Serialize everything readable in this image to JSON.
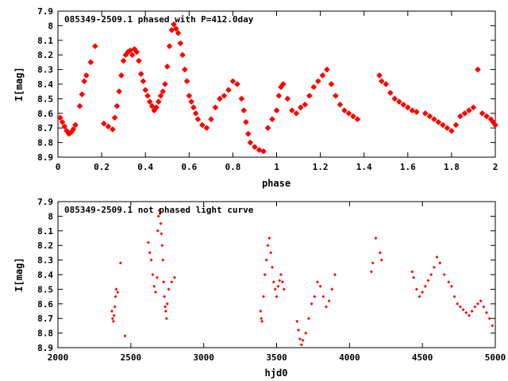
{
  "colors": {
    "points": "#ff0000",
    "axes": "#000000",
    "background": "#ffffff"
  },
  "chart_data": [
    {
      "type": "scatter",
      "title": "085349-2509.1 phased with P=412.0day",
      "xlabel": "phase",
      "ylabel": "I[mag]",
      "xlim": [
        0,
        2
      ],
      "ylim": [
        8.9,
        7.9
      ],
      "y_inverted": true,
      "grid": false,
      "legend": "none",
      "marker": "star",
      "xticks": [
        "0",
        "0.2",
        "0.4",
        "0.6",
        "0.8",
        "1",
        "1.2",
        "1.4",
        "1.6",
        "1.8",
        "2"
      ],
      "yticks": [
        "7.9",
        "8",
        "8.1",
        "8.2",
        "8.3",
        "8.4",
        "8.5",
        "8.6",
        "8.7",
        "8.8",
        "8.9"
      ],
      "series": [
        {
          "points": [
            [
              0.01,
              8.63
            ],
            [
              0.02,
              8.66
            ],
            [
              0.03,
              8.69
            ],
            [
              0.04,
              8.72
            ],
            [
              0.05,
              8.74
            ],
            [
              0.06,
              8.73
            ],
            [
              0.07,
              8.71
            ],
            [
              0.08,
              8.68
            ],
            [
              0.1,
              8.55
            ],
            [
              0.11,
              8.47
            ],
            [
              0.12,
              8.38
            ],
            [
              0.13,
              8.34
            ],
            [
              0.15,
              8.25
            ],
            [
              0.17,
              8.14
            ],
            [
              0.21,
              8.67
            ],
            [
              0.23,
              8.69
            ],
            [
              0.25,
              8.71
            ],
            [
              0.26,
              8.63
            ],
            [
              0.27,
              8.55
            ],
            [
              0.28,
              8.45
            ],
            [
              0.29,
              8.34
            ],
            [
              0.3,
              8.24
            ],
            [
              0.31,
              8.2
            ],
            [
              0.32,
              8.18
            ],
            [
              0.33,
              8.17
            ],
            [
              0.34,
              8.2
            ],
            [
              0.35,
              8.16
            ],
            [
              0.36,
              8.18
            ],
            [
              0.37,
              8.24
            ],
            [
              0.38,
              8.33
            ],
            [
              0.39,
              8.38
            ],
            [
              0.4,
              8.44
            ],
            [
              0.41,
              8.48
            ],
            [
              0.42,
              8.52
            ],
            [
              0.43,
              8.55
            ],
            [
              0.44,
              8.58
            ],
            [
              0.45,
              8.56
            ],
            [
              0.46,
              8.52
            ],
            [
              0.47,
              8.48
            ],
            [
              0.48,
              8.45
            ],
            [
              0.49,
              8.4
            ],
            [
              0.5,
              8.28
            ],
            [
              0.51,
              8.14
            ],
            [
              0.52,
              8.03
            ],
            [
              0.53,
              7.99
            ],
            [
              0.54,
              8.02
            ],
            [
              0.55,
              8.05
            ],
            [
              0.56,
              8.12
            ],
            [
              0.57,
              8.2
            ],
            [
              0.58,
              8.3
            ],
            [
              0.59,
              8.38
            ],
            [
              0.6,
              8.48
            ],
            [
              0.61,
              8.52
            ],
            [
              0.62,
              8.56
            ],
            [
              0.63,
              8.6
            ],
            [
              0.64,
              8.64
            ],
            [
              0.66,
              8.68
            ],
            [
              0.68,
              8.7
            ],
            [
              0.7,
              8.64
            ],
            [
              0.72,
              8.56
            ],
            [
              0.74,
              8.5
            ],
            [
              0.76,
              8.48
            ],
            [
              0.78,
              8.44
            ],
            [
              0.8,
              8.38
            ],
            [
              0.82,
              8.4
            ],
            [
              0.84,
              8.5
            ],
            [
              0.85,
              8.58
            ],
            [
              0.86,
              8.66
            ],
            [
              0.87,
              8.74
            ],
            [
              0.88,
              8.8
            ],
            [
              0.9,
              8.83
            ],
            [
              0.92,
              8.85
            ],
            [
              0.94,
              8.86
            ],
            [
              0.96,
              8.7
            ],
            [
              0.98,
              8.64
            ],
            [
              1.0,
              8.58
            ],
            [
              1.01,
              8.48
            ],
            [
              1.02,
              8.42
            ],
            [
              1.03,
              8.4
            ],
            [
              1.05,
              8.5
            ],
            [
              1.07,
              8.58
            ],
            [
              1.09,
              8.6
            ],
            [
              1.11,
              8.56
            ],
            [
              1.13,
              8.54
            ],
            [
              1.15,
              8.48
            ],
            [
              1.17,
              8.42
            ],
            [
              1.19,
              8.38
            ],
            [
              1.21,
              8.34
            ],
            [
              1.23,
              8.3
            ],
            [
              1.25,
              8.4
            ],
            [
              1.27,
              8.48
            ],
            [
              1.29,
              8.54
            ],
            [
              1.31,
              8.58
            ],
            [
              1.33,
              8.6
            ],
            [
              1.35,
              8.62
            ],
            [
              1.37,
              8.64
            ],
            [
              1.47,
              8.34
            ],
            [
              1.48,
              8.38
            ],
            [
              1.5,
              8.4
            ],
            [
              1.52,
              8.46
            ],
            [
              1.54,
              8.5
            ],
            [
              1.56,
              8.52
            ],
            [
              1.58,
              8.54
            ],
            [
              1.6,
              8.56
            ],
            [
              1.62,
              8.58
            ],
            [
              1.64,
              8.59
            ],
            [
              1.68,
              8.6
            ],
            [
              1.7,
              8.62
            ],
            [
              1.72,
              8.64
            ],
            [
              1.74,
              8.66
            ],
            [
              1.76,
              8.68
            ],
            [
              1.78,
              8.7
            ],
            [
              1.8,
              8.72
            ],
            [
              1.82,
              8.68
            ],
            [
              1.84,
              8.62
            ],
            [
              1.86,
              8.6
            ],
            [
              1.88,
              8.58
            ],
            [
              1.9,
              8.56
            ],
            [
              1.92,
              8.3
            ],
            [
              1.94,
              8.6
            ],
            [
              1.96,
              8.62
            ],
            [
              1.98,
              8.64
            ],
            [
              1.99,
              8.66
            ],
            [
              2.0,
              8.68
            ]
          ]
        }
      ]
    },
    {
      "type": "scatter",
      "title": "085349-2509.1 not phased light curve",
      "xlabel": "hjd0",
      "ylabel": "I[mag]",
      "xlim": [
        2000,
        5000
      ],
      "ylim": [
        8.9,
        7.9
      ],
      "y_inverted": true,
      "grid": false,
      "legend": "none",
      "marker": "diamond",
      "xticks": [
        "2000",
        "2500",
        "3000",
        "3500",
        "4000",
        "4500",
        "5000"
      ],
      "yticks": [
        "7.9",
        "8",
        "8.1",
        "8.2",
        "8.3",
        "8.4",
        "8.5",
        "8.6",
        "8.7",
        "8.8",
        "8.9"
      ],
      "series": [
        {
          "points": [
            [
              2370,
              8.65
            ],
            [
              2375,
              8.7
            ],
            [
              2380,
              8.72
            ],
            [
              2385,
              8.68
            ],
            [
              2390,
              8.62
            ],
            [
              2395,
              8.55
            ],
            [
              2400,
              8.5
            ],
            [
              2410,
              8.52
            ],
            [
              2430,
              8.32
            ],
            [
              2460,
              8.82
            ],
            [
              2620,
              8.18
            ],
            [
              2630,
              8.25
            ],
            [
              2640,
              8.3
            ],
            [
              2650,
              8.4
            ],
            [
              2660,
              8.48
            ],
            [
              2670,
              8.52
            ],
            [
              2680,
              8.42
            ],
            [
              2685,
              8.1
            ],
            [
              2690,
              8.0
            ],
            [
              2695,
              7.96
            ],
            [
              2700,
              7.98
            ],
            [
              2705,
              8.05
            ],
            [
              2710,
              8.12
            ],
            [
              2715,
              8.2
            ],
            [
              2720,
              8.3
            ],
            [
              2725,
              8.45
            ],
            [
              2730,
              8.55
            ],
            [
              2735,
              8.62
            ],
            [
              2740,
              8.65
            ],
            [
              2745,
              8.7
            ],
            [
              2750,
              8.6
            ],
            [
              2760,
              8.5
            ],
            [
              2780,
              8.45
            ],
            [
              2800,
              8.42
            ],
            [
              3390,
              8.65
            ],
            [
              3395,
              8.7
            ],
            [
              3400,
              8.72
            ],
            [
              3410,
              8.55
            ],
            [
              3420,
              8.4
            ],
            [
              3430,
              8.3
            ],
            [
              3440,
              8.2
            ],
            [
              3450,
              8.15
            ],
            [
              3460,
              8.25
            ],
            [
              3470,
              8.35
            ],
            [
              3480,
              8.45
            ],
            [
              3490,
              8.5
            ],
            [
              3500,
              8.55
            ],
            [
              3510,
              8.48
            ],
            [
              3520,
              8.44
            ],
            [
              3530,
              8.4
            ],
            [
              3540,
              8.45
            ],
            [
              3550,
              8.5
            ],
            [
              3640,
              8.72
            ],
            [
              3650,
              8.78
            ],
            [
              3660,
              8.84
            ],
            [
              3670,
              8.88
            ],
            [
              3680,
              8.85
            ],
            [
              3700,
              8.8
            ],
            [
              3720,
              8.7
            ],
            [
              3740,
              8.6
            ],
            [
              3760,
              8.55
            ],
            [
              3780,
              8.45
            ],
            [
              3800,
              8.48
            ],
            [
              3820,
              8.55
            ],
            [
              3840,
              8.62
            ],
            [
              3860,
              8.58
            ],
            [
              3880,
              8.5
            ],
            [
              3900,
              8.4
            ],
            [
              4150,
              8.38
            ],
            [
              4160,
              8.32
            ],
            [
              4180,
              8.15
            ],
            [
              4210,
              8.25
            ],
            [
              4220,
              8.3
            ],
            [
              4430,
              8.38
            ],
            [
              4440,
              8.42
            ],
            [
              4460,
              8.5
            ],
            [
              4480,
              8.55
            ],
            [
              4500,
              8.52
            ],
            [
              4520,
              8.48
            ],
            [
              4540,
              8.44
            ],
            [
              4560,
              8.4
            ],
            [
              4580,
              8.35
            ],
            [
              4600,
              8.28
            ],
            [
              4620,
              8.32
            ],
            [
              4650,
              8.4
            ],
            [
              4680,
              8.45
            ],
            [
              4700,
              8.48
            ],
            [
              4720,
              8.55
            ],
            [
              4740,
              8.6
            ],
            [
              4760,
              8.62
            ],
            [
              4780,
              8.64
            ],
            [
              4800,
              8.66
            ],
            [
              4820,
              8.68
            ],
            [
              4840,
              8.65
            ],
            [
              4860,
              8.62
            ],
            [
              4880,
              8.6
            ],
            [
              4900,
              8.58
            ],
            [
              4920,
              8.62
            ],
            [
              4940,
              8.66
            ],
            [
              4960,
              8.7
            ],
            [
              4980,
              8.75
            ]
          ]
        }
      ]
    }
  ]
}
